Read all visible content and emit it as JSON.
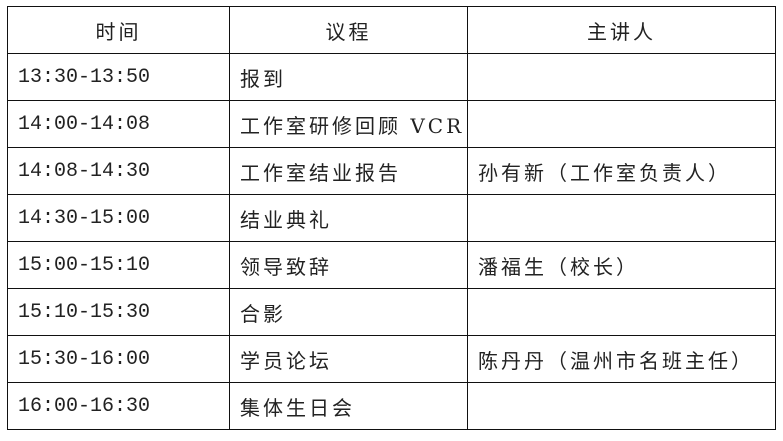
{
  "headers": [
    "时间",
    "议程",
    "主讲人"
  ],
  "rows": [
    {
      "time": "13:30-13:50",
      "agenda": "报到",
      "speaker": ""
    },
    {
      "time": "14:00-14:08",
      "agenda": "工作室研修回顾 VCR",
      "speaker": ""
    },
    {
      "time": "14:08-14:30",
      "agenda": "工作室结业报告",
      "speaker": "孙有新（工作室负责人）"
    },
    {
      "time": "14:30-15:00",
      "agenda": "结业典礼",
      "speaker": ""
    },
    {
      "time": "15:00-15:10",
      "agenda": "领导致辞",
      "speaker": "潘福生（校长）"
    },
    {
      "time": "15:10-15:30",
      "agenda": "合影",
      "speaker": ""
    },
    {
      "time": "15:30-16:00",
      "agenda": "学员论坛",
      "speaker": "陈丹丹（温州市名班主任）"
    },
    {
      "time": "16:00-16:30",
      "agenda": "集体生日会",
      "speaker": ""
    }
  ]
}
